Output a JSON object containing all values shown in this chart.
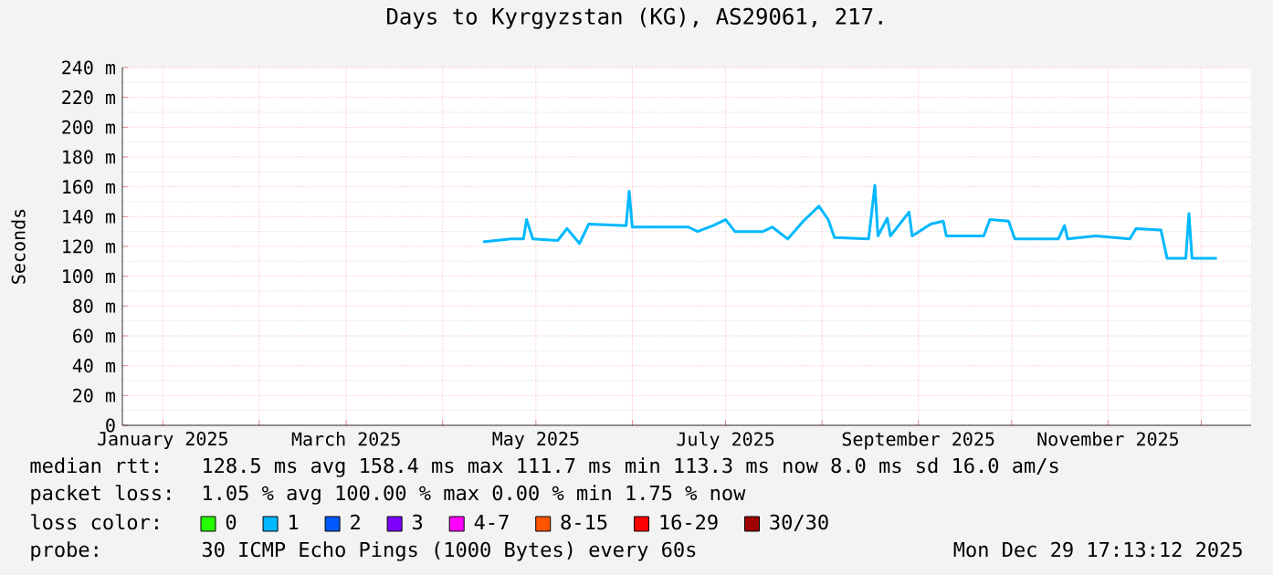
{
  "chart_data": {
    "type": "line",
    "title": "Days to Kyrgyzstan (KG), AS29061, 217.",
    "ylabel": "Seconds",
    "x": [
      "2025-04-14",
      "2025-04-23",
      "2025-04-27",
      "2025-04-28",
      "2025-04-30",
      "2025-05-08",
      "2025-05-11",
      "2025-05-15",
      "2025-05-18",
      "2025-05-30",
      "2025-05-31",
      "2025-06-01",
      "2025-06-19",
      "2025-06-22",
      "2025-06-27",
      "2025-07-01",
      "2025-07-04",
      "2025-07-13",
      "2025-07-16",
      "2025-07-21",
      "2025-07-26",
      "2025-07-31",
      "2025-08-03",
      "2025-08-05",
      "2025-08-16",
      "2025-08-18",
      "2025-08-19",
      "2025-08-22",
      "2025-08-23",
      "2025-08-29",
      "2025-08-30",
      "2025-09-05",
      "2025-09-09",
      "2025-09-10",
      "2025-09-22",
      "2025-09-24",
      "2025-09-30",
      "2025-10-02",
      "2025-10-16",
      "2025-10-18",
      "2025-10-19",
      "2025-10-28",
      "2025-11-08",
      "2025-11-10",
      "2025-11-18",
      "2025-11-20",
      "2025-11-26",
      "2025-11-27",
      "2025-11-28",
      "2025-12-06"
    ],
    "series": [
      {
        "color": "#00b8ff",
        "values": [
          123,
          125,
          125,
          138,
          125,
          124,
          132,
          122,
          135,
          134,
          157,
          133,
          133,
          130,
          134,
          138,
          130,
          130,
          133,
          125,
          137,
          147,
          138,
          126,
          125,
          161,
          127,
          139,
          127,
          143,
          127,
          135,
          137,
          127,
          127,
          138,
          137,
          125,
          125,
          134,
          125,
          127,
          125,
          132,
          131,
          112,
          112,
          142,
          112,
          112
        ]
      },
      {
        "name": "0",
        "color": "#26ff00",
        "values": [
          null,
          null,
          null,
          null,
          null,
          null,
          null,
          null,
          null,
          null,
          null,
          null,
          null,
          null,
          null,
          null,
          null,
          null,
          null,
          null,
          null,
          null,
          null,
          null,
          null,
          null,
          null,
          null,
          null,
          null,
          null,
          null,
          null,
          null,
          null,
          null,
          null,
          null,
          null,
          null,
          null,
          null,
          null,
          null,
          null,
          null,
          null,
          null,
          null,
          null
        ]
      },
      {
        "name": "1",
        "color": "#00b8ff",
        "values": [
          null,
          null,
          null,
          null,
          null,
          null,
          null,
          null,
          null,
          null,
          null,
          null,
          null,
          null,
          null,
          null,
          null,
          null,
          null,
          null,
          null,
          null,
          null,
          null,
          null,
          null,
          null,
          null,
          null,
          null,
          null,
          null,
          null,
          null,
          null,
          null,
          null,
          null,
          null,
          null,
          null,
          null,
          null,
          null,
          null,
          null,
          null,
          null,
          null,
          null
        ]
      },
      {
        "name": "2",
        "color": "#0059ff",
        "values": [
          null,
          null,
          null,
          null,
          null,
          null,
          null,
          null,
          null,
          null,
          null,
          null,
          null,
          null,
          null,
          null,
          null,
          null,
          null,
          null,
          null,
          null,
          null,
          null,
          null,
          null,
          null,
          null,
          null,
          null,
          null,
          null,
          null,
          null,
          null,
          null,
          null,
          null,
          null,
          null,
          null,
          null,
          null,
          null,
          null,
          null,
          null,
          null,
          null,
          null
        ]
      },
      {
        "name": "3",
        "color": "#7e00ff",
        "values": [
          null,
          null,
          null,
          null,
          null,
          null,
          null,
          null,
          null,
          null,
          null,
          null,
          null,
          null,
          null,
          null,
          null,
          null,
          null,
          null,
          null,
          null,
          null,
          null,
          null,
          null,
          null,
          null,
          null,
          null,
          null,
          null,
          null,
          null,
          null,
          null,
          null,
          null,
          null,
          null,
          null,
          null,
          null,
          null,
          null,
          null,
          null,
          null,
          null,
          null
        ]
      },
      {
        "name": "4-7",
        "color": "#ff00ff",
        "values": [
          null,
          null,
          null,
          null,
          null,
          null,
          null,
          null,
          null,
          null,
          null,
          null,
          null,
          null,
          null,
          null,
          null,
          null,
          null,
          null,
          null,
          null,
          null,
          null,
          null,
          null,
          null,
          null,
          null,
          null,
          null,
          null,
          null,
          null,
          null,
          null,
          null,
          null,
          null,
          null,
          null,
          null,
          null,
          null,
          null,
          null,
          null,
          null,
          null,
          null
        ]
      },
      {
        "name": "8-15",
        "color": "#ff5500",
        "values": [
          null,
          null,
          null,
          null,
          null,
          null,
          null,
          null,
          null,
          null,
          null,
          null,
          null,
          null,
          null,
          null,
          null,
          null,
          null,
          null,
          null,
          null,
          null,
          null,
          null,
          null,
          null,
          null,
          null,
          null,
          null,
          null,
          null,
          null,
          null,
          null,
          null,
          null,
          null,
          null,
          null,
          null,
          null,
          null,
          null,
          null,
          null,
          null,
          null,
          null
        ]
      },
      {
        "name": "16-29",
        "color": "#ff0000",
        "values": [
          null,
          null,
          null,
          null,
          null,
          null,
          null,
          null,
          null,
          null,
          null,
          null,
          null,
          null,
          null,
          null,
          null,
          null,
          null,
          null,
          null,
          null,
          null,
          null,
          null,
          null,
          null,
          null,
          null,
          null,
          null,
          null,
          null,
          null,
          null,
          null,
          null,
          null,
          null,
          null,
          null,
          null,
          null,
          null,
          null,
          null,
          null,
          null,
          null,
          null
        ]
      },
      {
        "name": "30/30",
        "color": "#a00000",
        "values": [
          null,
          null,
          null,
          null,
          null,
          null,
          null,
          null,
          null,
          null,
          null,
          null,
          null,
          null,
          null,
          null,
          null,
          null,
          null,
          null,
          null,
          null,
          null,
          null,
          null,
          null,
          null,
          null,
          null,
          null,
          null,
          null,
          null,
          null,
          null,
          null,
          null,
          null,
          null,
          null,
          null,
          null,
          null,
          null,
          null,
          null,
          null,
          null,
          null,
          null
        ]
      }
    ],
    "xlim": [
      "2024-12-19",
      "2025-12-17"
    ],
    "xticks": [
      {
        "value": "2025-01-01",
        "label": "January 2025"
      },
      {
        "value": "2025-02-01",
        "label": null
      },
      {
        "value": "2025-03-01",
        "label": "March 2025"
      },
      {
        "value": "2025-04-01",
        "label": null
      },
      {
        "value": "2025-05-01",
        "label": "May 2025"
      },
      {
        "value": "2025-06-01",
        "label": null
      },
      {
        "value": "2025-07-01",
        "label": "July 2025"
      },
      {
        "value": "2025-08-01",
        "label": null
      },
      {
        "value": "2025-09-01",
        "label": "September 2025"
      },
      {
        "value": "2025-10-01",
        "label": null
      },
      {
        "value": "2025-11-01",
        "label": "November 2025"
      },
      {
        "value": "2025-12-01",
        "label": null
      }
    ],
    "ylim": [
      0,
      240
    ],
    "yticks": [
      {
        "value": 0,
        "label": "0"
      },
      {
        "value": 20,
        "label": "20 m"
      },
      {
        "value": 40,
        "label": "40 m"
      },
      {
        "value": 60,
        "label": "60 m"
      },
      {
        "value": 80,
        "label": "80 m"
      },
      {
        "value": 100,
        "label": "100 m"
      },
      {
        "value": 120,
        "label": "120 m"
      },
      {
        "value": 140,
        "label": "140 m"
      },
      {
        "value": 160,
        "label": "160 m"
      },
      {
        "value": 180,
        "label": "180 m"
      },
      {
        "value": 200,
        "label": "200 m"
      },
      {
        "value": 220,
        "label": "220 m"
      },
      {
        "value": 240,
        "label": "240 m"
      }
    ],
    "grid": true,
    "legend": "bottom",
    "annotations": [
      "median rtt:",
      "128.5 ms avg 158.4 ms max 111.7 ms min 113.3 ms now 8.0 ms sd 16.0 am/s",
      "packet loss:",
      "1.05 % avg 100.00 % max 0.00 % min 1.75 % now",
      "loss color:",
      "probe:",
      "30 ICMP Echo Pings (1000 Bytes) every 60s",
      "Mon Dec 29 17:13:12 2025"
    ]
  }
}
